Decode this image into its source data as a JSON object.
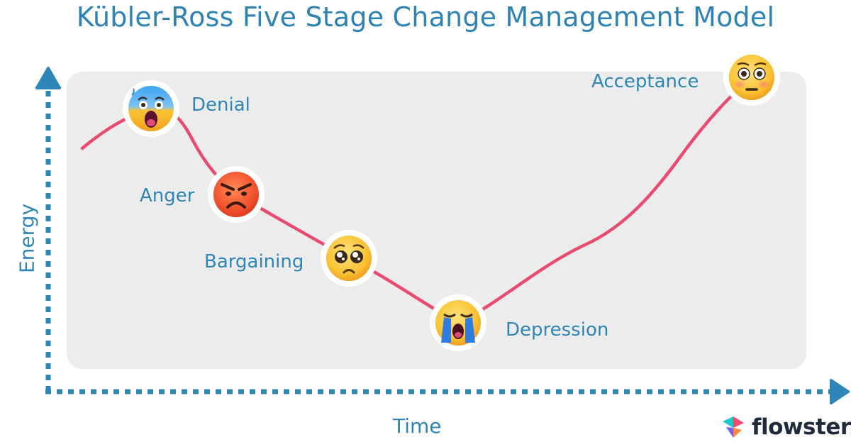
{
  "title": "Kübler-Ross Five Stage Change Management Model",
  "axes": {
    "y_label": "Energy",
    "x_label": "Time"
  },
  "stages": [
    {
      "label": "Denial",
      "emoji": "fearful-screaming-face-icon"
    },
    {
      "label": "Anger",
      "emoji": "angry-face-icon"
    },
    {
      "label": "Bargaining",
      "emoji": "pleading-face-icon"
    },
    {
      "label": "Depression",
      "emoji": "loudly-crying-face-icon"
    },
    {
      "label": "Acceptance",
      "emoji": "flushed-face-icon"
    }
  ],
  "brand": {
    "name": "flowster"
  },
  "colors": {
    "title": "#2f83b3",
    "labels": "#2f86b6",
    "axis": "#2e86b8",
    "curve": "#e84b6e",
    "panel": "#ececed"
  }
}
